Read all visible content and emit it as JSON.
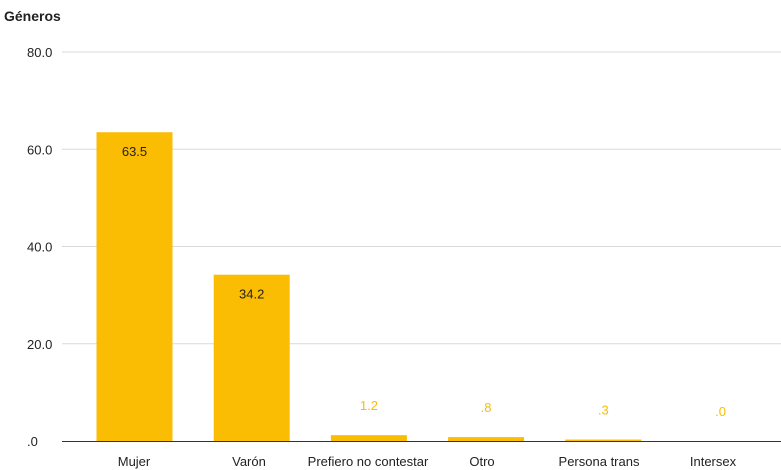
{
  "chart_data": {
    "type": "bar",
    "title": "Géneros",
    "xlabel": "",
    "ylabel": "",
    "ylim": [
      0,
      80
    ],
    "yticks": [
      0,
      20,
      40,
      60,
      80
    ],
    "ytick_labels": [
      ".0",
      "20.0",
      "40.0",
      "60.0",
      "80.0"
    ],
    "grid": true,
    "categories": [
      "Mujer",
      "Varón",
      "Prefiero no contestar",
      "Otro",
      "Persona trans",
      "Intersex"
    ],
    "values": [
      63.5,
      34.2,
      1.2,
      0.8,
      0.3,
      0.0
    ],
    "data_labels": [
      "63.5",
      "34.2",
      "1.2",
      ".8",
      ".3",
      ".0"
    ],
    "bar_color": "#fbbc04",
    "label_inside_color": "#222222",
    "label_outside_color": "#fbbc04"
  }
}
